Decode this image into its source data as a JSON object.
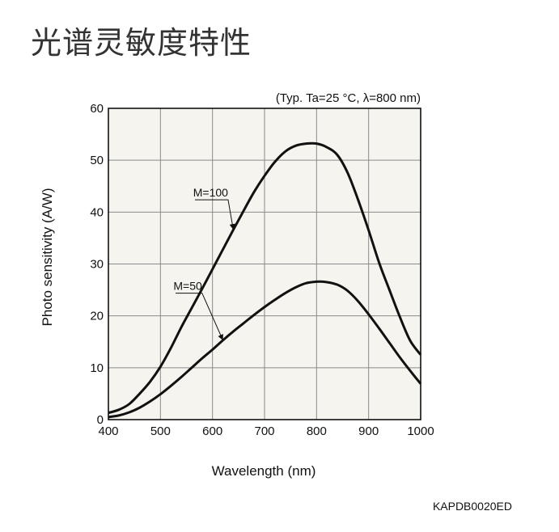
{
  "page": {
    "heading": "光谱灵敏度特性",
    "figure_code": "KAPDB0020ED"
  },
  "chart_data": {
    "type": "line",
    "subtitle": "(Typ. Ta=25 °C, λ=800 nm)",
    "xlabel": "Wavelength (nm)",
    "ylabel": "Photo sensitivity (A/W)",
    "xlim": [
      400,
      1000
    ],
    "ylim": [
      0,
      60
    ],
    "xticks": [
      400,
      500,
      600,
      700,
      800,
      900,
      1000
    ],
    "yticks": [
      0,
      10,
      20,
      30,
      40,
      50,
      60
    ],
    "grid": true,
    "plot_background": "#f5f4ee",
    "series": [
      {
        "name": "M=100",
        "x": [
          400,
          420,
          440,
          460,
          480,
          500,
          520,
          540,
          560,
          580,
          600,
          620,
          640,
          660,
          680,
          700,
          720,
          740,
          760,
          780,
          800,
          820,
          840,
          860,
          880,
          900,
          920,
          940,
          960,
          980,
          1000
        ],
        "y": [
          1.3,
          1.9,
          3.0,
          5.0,
          7.3,
          10.2,
          13.8,
          17.8,
          21.5,
          25.2,
          29.0,
          32.8,
          36.6,
          40.3,
          43.9,
          47.0,
          49.7,
          51.7,
          52.8,
          53.2,
          53.2,
          52.5,
          51.0,
          47.5,
          42.3,
          36.5,
          30.3,
          25.0,
          19.8,
          15.2,
          12.5
        ]
      },
      {
        "name": "M=50",
        "x": [
          400,
          420,
          440,
          460,
          480,
          500,
          520,
          540,
          560,
          580,
          600,
          620,
          640,
          660,
          680,
          700,
          720,
          740,
          760,
          780,
          800,
          820,
          840,
          860,
          880,
          900,
          920,
          940,
          960,
          980,
          1000
        ],
        "y": [
          0.5,
          0.8,
          1.4,
          2.3,
          3.5,
          4.9,
          6.5,
          8.2,
          10.0,
          11.8,
          13.5,
          15.3,
          17.0,
          18.6,
          20.2,
          21.7,
          23.1,
          24.4,
          25.5,
          26.3,
          26.6,
          26.5,
          26.0,
          24.8,
          22.8,
          20.3,
          17.6,
          14.8,
          12.0,
          9.4,
          6.9
        ]
      }
    ],
    "annotations": [
      {
        "text": "M=100",
        "series": "M=100",
        "label_at": [
          630,
          43
        ],
        "points_to": [
          640,
          36.6
        ]
      },
      {
        "text": "M=50",
        "series": "M=50",
        "label_at": [
          580,
          25
        ],
        "points_to": [
          620,
          15.3
        ]
      }
    ]
  }
}
